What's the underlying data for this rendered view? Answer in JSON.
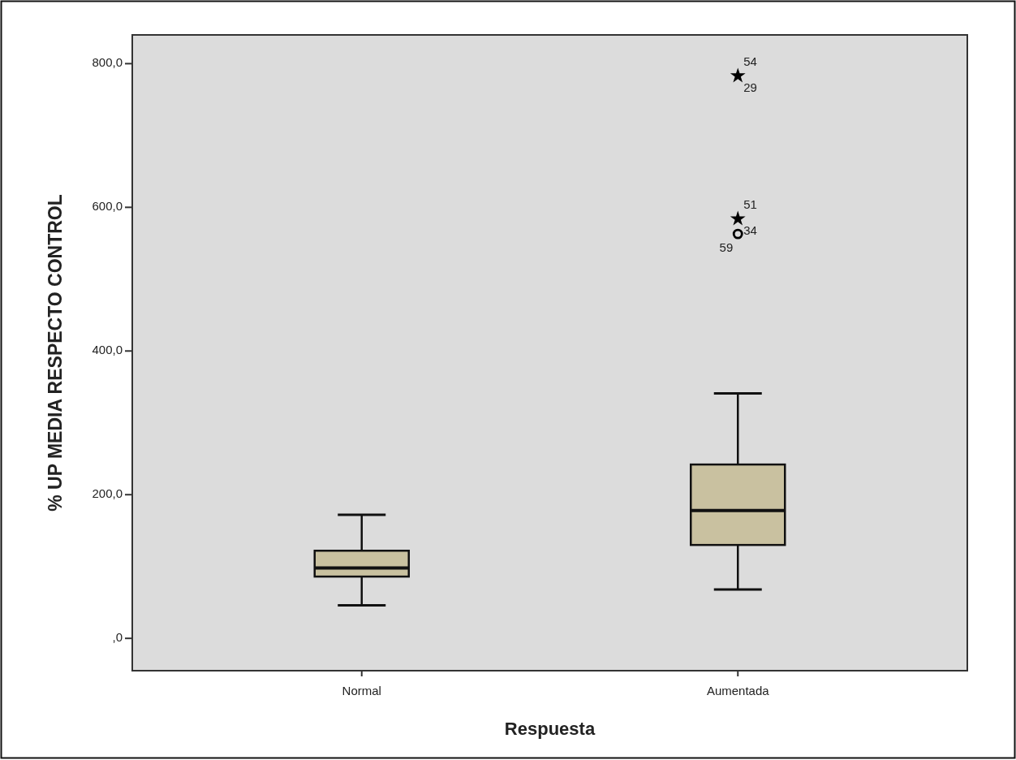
{
  "chart_data": {
    "type": "box",
    "xlabel": "Respuesta",
    "ylabel": "% UP MEDIA RESPECTO CONTROL",
    "categories": [
      "Normal",
      "Aumentada"
    ],
    "ylim": [
      -45,
      840
    ],
    "yticks": [
      {
        "value": 0,
        "label": ",0"
      },
      {
        "value": 200,
        "label": "200,0"
      },
      {
        "value": 400,
        "label": "400,0"
      },
      {
        "value": 600,
        "label": "600,0"
      },
      {
        "value": 800,
        "label": "800,0"
      }
    ],
    "series": [
      {
        "color": "#c9c1a0",
        "boxes": [
          {
            "low": 46,
            "q1": 86,
            "median": 98,
            "q3": 122,
            "high": 172
          },
          {
            "low": 68,
            "q1": 130,
            "median": 178,
            "q3": 242,
            "high": 341
          }
        ]
      },
      {
        "type": "scatter",
        "marker": "star",
        "color": "#000000",
        "x": [
          "Aumentada",
          "Aumentada"
        ],
        "values": [
          783,
          584
        ]
      },
      {
        "type": "scatter",
        "marker": "circle",
        "color": "#000000",
        "x": [
          "Aumentada"
        ],
        "values": [
          563
        ]
      }
    ],
    "annotations": [
      {
        "text": "54",
        "x": "Aumentada",
        "y": 783
      },
      {
        "text": "29",
        "x": "Aumentada",
        "y": 783
      },
      {
        "text": "51",
        "x": "Aumentada",
        "y": 584
      },
      {
        "text": "34",
        "x": "Aumentada",
        "y": 584
      },
      {
        "text": "59",
        "x": "Aumentada",
        "y": 563
      }
    ]
  }
}
